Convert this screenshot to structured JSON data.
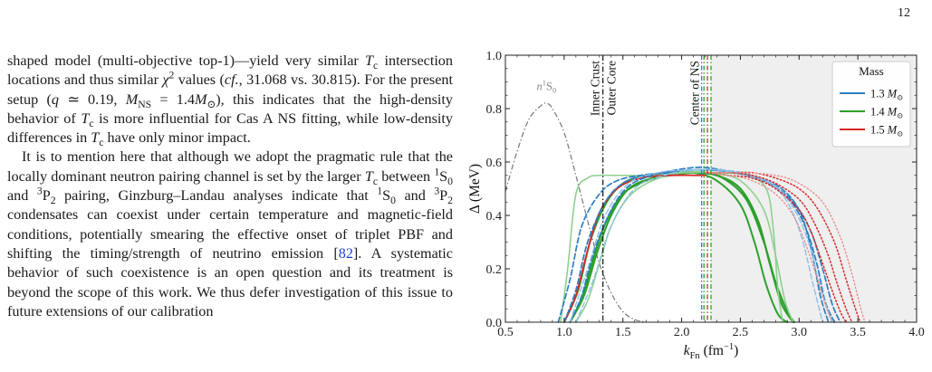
{
  "page": {
    "number": "12"
  },
  "body_text": {
    "para1": [
      {
        "t": "shaped model (multi-objective top-1)—yield very similar "
      },
      {
        "t": "T",
        "i": true
      },
      {
        "t": "c",
        "sub": true
      },
      {
        "t": " intersection locations and thus similar "
      },
      {
        "t": "χ",
        "i": true
      },
      {
        "t": "2",
        "sup": true
      },
      {
        "t": " values ("
      },
      {
        "t": "cf.",
        "i": true
      },
      {
        "t": ", 31.068 vs. 30.815). For the present setup ("
      },
      {
        "t": "q",
        "i": true
      },
      {
        "t": " ≃ 0.19, "
      },
      {
        "t": "M",
        "i": true
      },
      {
        "t": "NS",
        "sub": true
      },
      {
        "t": " = 1.4"
      },
      {
        "t": "M",
        "i": true
      },
      {
        "t": "⊙",
        "sub": true
      },
      {
        "t": "), this indicates that the high-density behavior of "
      },
      {
        "t": "T",
        "i": true
      },
      {
        "t": "c",
        "sub": true
      },
      {
        "t": " is more influential for Cas A NS fitting, while low-density differences in "
      },
      {
        "t": "T",
        "i": true
      },
      {
        "t": "c",
        "sub": true
      },
      {
        "t": " have only minor impact."
      }
    ],
    "para2": [
      {
        "t": "It is to mention here that although we adopt the pragmatic rule that the locally dominant neutron pairing channel is set by the larger "
      },
      {
        "t": "T",
        "i": true
      },
      {
        "t": "c",
        "sub": true
      },
      {
        "t": " between "
      },
      {
        "t": "1",
        "sup": true
      },
      {
        "t": "S"
      },
      {
        "t": "0",
        "sub": true
      },
      {
        "t": " and "
      },
      {
        "t": "3",
        "sup": true
      },
      {
        "t": "P"
      },
      {
        "t": "2",
        "sub": true
      },
      {
        "t": " pairing, Ginzburg–Landau analyses indicate that "
      },
      {
        "t": "1",
        "sup": true
      },
      {
        "t": "S"
      },
      {
        "t": "0",
        "sub": true
      },
      {
        "t": " and "
      },
      {
        "t": "3",
        "sup": true
      },
      {
        "t": "P"
      },
      {
        "t": "2",
        "sub": true
      },
      {
        "t": " condensates can coexist under certain temperature and magnetic-field conditions, potentially smearing the effective onset of triplet PBF and shifting the timing/strength of neutrino emission ["
      },
      {
        "t": "82",
        "cite": true
      },
      {
        "t": "]. A systematic behavior of such coexistence is an open question and its treatment is beyond the scope of this work. We thus defer investigation of this issue to future extensions of our calibration"
      }
    ]
  },
  "chart_data": {
    "type": "line",
    "xlabel": "k",
    "xlabel_sub": "Fn",
    "xlabel_unit": "(fm",
    "xlabel_unit_sup": "−1",
    "xlabel_unit_end": ")",
    "ylabel": "Δ (MeV)",
    "xlim": [
      0.5,
      4.0
    ],
    "ylim": [
      0.0,
      1.0
    ],
    "xticks": [
      "0.5",
      "1.0",
      "1.5",
      "2.0",
      "2.5",
      "3.0",
      "3.5",
      "4.0"
    ],
    "yticks": [
      "0.0",
      "0.2",
      "0.4",
      "0.6",
      "0.8",
      "1.0"
    ],
    "legend": {
      "title": "Mass",
      "position": "top-right",
      "entries": [
        {
          "label": "1.3",
          "unit": "M",
          "sub": "⊙",
          "color": "#2e7fc1"
        },
        {
          "label": "1.4",
          "unit": "M",
          "sub": "⊙",
          "color": "#2ca02c"
        },
        {
          "label": "1.5",
          "unit": "M",
          "sub": "⊙",
          "color": "#d62728"
        }
      ]
    },
    "annotations": {
      "singlet_label": "n",
      "singlet_label_sup": "1",
      "singlet_label_end": "S",
      "singlet_label_sub": "0",
      "inner_crust": "Inner Crust",
      "outer_core": "Outer Core",
      "center": "Center of NS"
    },
    "crust_core_boundary_x": 1.33,
    "center_lines": [
      {
        "x": 2.17,
        "color": "#2e7fc1"
      },
      {
        "x": 2.19,
        "color": "#2ca02c"
      },
      {
        "x": 2.22,
        "color": "#d62728"
      },
      {
        "x": 2.25,
        "color": "#2ca02c"
      }
    ],
    "shaded_region_x": [
      2.25,
      4.0
    ],
    "singlet_curve": {
      "color": "#777777",
      "x": [
        0.5,
        0.6,
        0.7,
        0.8,
        0.85,
        0.9,
        1.0,
        1.1,
        1.2,
        1.3,
        1.4,
        1.5,
        1.6,
        1.7
      ],
      "y": [
        0.49,
        0.64,
        0.76,
        0.81,
        0.82,
        0.8,
        0.71,
        0.55,
        0.38,
        0.22,
        0.11,
        0.04,
        0.01,
        0.0
      ]
    },
    "series": [
      {
        "color": "#2ca02c",
        "style": "solid",
        "width": 2.2,
        "x": [
          1.05,
          1.15,
          1.25,
          1.35,
          1.5,
          1.7,
          1.9,
          2.1,
          2.3,
          2.5,
          2.65,
          2.75,
          2.85,
          2.95
        ],
        "y": [
          0.0,
          0.09,
          0.24,
          0.37,
          0.48,
          0.53,
          0.55,
          0.56,
          0.55,
          0.5,
          0.38,
          0.22,
          0.07,
          0.0
        ]
      },
      {
        "color": "#2ca02c",
        "style": "solid",
        "width": 2.0,
        "x": [
          1.05,
          1.17,
          1.28,
          1.4,
          1.55,
          1.75,
          1.95,
          2.15,
          2.35,
          2.55,
          2.7,
          2.8,
          2.9,
          2.96
        ],
        "y": [
          0.0,
          0.1,
          0.26,
          0.4,
          0.5,
          0.54,
          0.56,
          0.56,
          0.54,
          0.46,
          0.3,
          0.15,
          0.04,
          0.0
        ]
      },
      {
        "color": "#2ca02c",
        "style": "solid",
        "width": 2.0,
        "x": [
          1.0,
          1.12,
          1.22,
          1.35,
          1.5,
          1.7,
          1.9,
          2.1,
          2.3,
          2.5,
          2.62,
          2.72,
          2.82,
          2.9
        ],
        "y": [
          0.0,
          0.12,
          0.3,
          0.44,
          0.52,
          0.55,
          0.56,
          0.56,
          0.53,
          0.44,
          0.3,
          0.14,
          0.03,
          0.0
        ]
      },
      {
        "color": "#8fd08f",
        "style": "solid",
        "width": 1.6,
        "x": [
          0.97,
          1.03,
          1.1,
          1.2,
          1.3,
          1.45,
          1.7,
          2.0,
          2.3,
          2.55,
          2.72,
          2.78,
          2.82,
          2.86
        ],
        "y": [
          0.0,
          0.2,
          0.48,
          0.54,
          0.55,
          0.55,
          0.55,
          0.56,
          0.56,
          0.55,
          0.5,
          0.35,
          0.12,
          0.0
        ]
      },
      {
        "color": "#8fd08f",
        "style": "solid",
        "width": 1.6,
        "x": [
          1.1,
          1.2,
          1.3,
          1.4,
          1.55,
          1.75,
          2.0,
          2.25,
          2.5,
          2.7,
          2.8,
          2.88,
          2.95
        ],
        "y": [
          0.0,
          0.08,
          0.22,
          0.36,
          0.47,
          0.53,
          0.56,
          0.56,
          0.53,
          0.42,
          0.25,
          0.08,
          0.0
        ]
      },
      {
        "color": "#d62728",
        "style": "solid",
        "width": 1.8,
        "x": [
          1.0,
          1.1,
          1.2,
          1.3,
          1.45,
          1.65,
          1.9,
          2.15,
          2.2
        ],
        "y": [
          0.0,
          0.1,
          0.27,
          0.41,
          0.5,
          0.54,
          0.55,
          0.55,
          0.55
        ]
      },
      {
        "color": "#2e7fc1",
        "style": "dashed",
        "width": 1.7,
        "x": [
          0.95,
          1.05,
          1.15,
          1.3,
          1.45,
          1.65,
          1.85,
          2.05,
          2.25,
          2.45,
          2.65,
          2.85,
          3.0,
          3.1,
          3.18,
          3.25
        ],
        "y": [
          0.0,
          0.16,
          0.36,
          0.48,
          0.53,
          0.55,
          0.56,
          0.57,
          0.57,
          0.56,
          0.54,
          0.5,
          0.42,
          0.28,
          0.1,
          0.0
        ]
      },
      {
        "color": "#2e7fc1",
        "style": "dashed",
        "width": 1.7,
        "x": [
          1.0,
          1.1,
          1.2,
          1.35,
          1.5,
          1.7,
          1.9,
          2.1,
          2.3,
          2.5,
          2.7,
          2.9,
          3.05,
          3.15,
          3.22,
          3.3
        ],
        "y": [
          0.0,
          0.12,
          0.3,
          0.45,
          0.52,
          0.55,
          0.56,
          0.57,
          0.57,
          0.56,
          0.53,
          0.47,
          0.36,
          0.22,
          0.08,
          0.0
        ]
      },
      {
        "color": "#2e7fc1",
        "style": "dashed",
        "width": 1.7,
        "x": [
          1.05,
          1.15,
          1.25,
          1.4,
          1.55,
          1.75,
          1.95,
          2.15,
          2.35,
          2.55,
          2.75,
          2.95,
          3.1,
          3.2,
          3.28,
          3.35
        ],
        "y": [
          0.0,
          0.1,
          0.26,
          0.42,
          0.51,
          0.55,
          0.57,
          0.58,
          0.57,
          0.55,
          0.52,
          0.45,
          0.34,
          0.2,
          0.07,
          0.0
        ]
      },
      {
        "color": "#8ec0e6",
        "style": "dashed",
        "width": 1.4,
        "x": [
          1.05,
          1.2,
          1.35,
          1.55,
          1.8,
          2.05,
          2.3,
          2.55,
          2.75,
          2.9,
          3.02,
          3.12,
          3.2
        ],
        "y": [
          0.0,
          0.2,
          0.4,
          0.52,
          0.56,
          0.57,
          0.57,
          0.55,
          0.52,
          0.45,
          0.32,
          0.14,
          0.0
        ]
      },
      {
        "color": "#8ec0e6",
        "style": "dashed",
        "width": 1.4,
        "x": [
          1.1,
          1.25,
          1.4,
          1.6,
          1.85,
          2.1,
          2.35,
          2.6,
          2.8,
          2.95,
          3.08,
          3.18,
          3.28
        ],
        "y": [
          0.0,
          0.16,
          0.36,
          0.5,
          0.55,
          0.57,
          0.57,
          0.55,
          0.51,
          0.43,
          0.3,
          0.13,
          0.0
        ]
      },
      {
        "color": "#d62728",
        "style": "dotted",
        "width": 1.5,
        "x": [
          2.2,
          2.4,
          2.6,
          2.8,
          3.0,
          3.1,
          3.2,
          3.28,
          3.35,
          3.4
        ],
        "y": [
          0.56,
          0.55,
          0.54,
          0.5,
          0.42,
          0.34,
          0.22,
          0.12,
          0.04,
          0.0
        ]
      },
      {
        "color": "#d62728",
        "style": "dotted",
        "width": 1.5,
        "x": [
          2.2,
          2.4,
          2.6,
          2.8,
          3.0,
          3.12,
          3.24,
          3.32,
          3.4,
          3.45
        ],
        "y": [
          0.56,
          0.56,
          0.55,
          0.52,
          0.46,
          0.38,
          0.26,
          0.15,
          0.05,
          0.0
        ]
      },
      {
        "color": "#d62728",
        "style": "dotted",
        "width": 1.5,
        "x": [
          2.2,
          2.4,
          2.6,
          2.8,
          3.0,
          3.15,
          3.3,
          3.4,
          3.48,
          3.52
        ],
        "y": [
          0.56,
          0.56,
          0.56,
          0.54,
          0.5,
          0.43,
          0.3,
          0.16,
          0.05,
          0.0
        ]
      },
      {
        "color": "#e88a8a",
        "style": "dotted",
        "width": 1.3,
        "x": [
          2.2,
          2.5,
          2.8,
          3.0,
          3.2,
          3.35,
          3.45,
          3.52,
          3.56
        ],
        "y": [
          0.56,
          0.56,
          0.55,
          0.52,
          0.45,
          0.32,
          0.18,
          0.06,
          0.0
        ]
      },
      {
        "color": "#e88a8a",
        "style": "dotted",
        "width": 1.3,
        "x": [
          2.2,
          2.4,
          2.6,
          2.8,
          2.95,
          3.05,
          3.15,
          3.22,
          3.28
        ],
        "y": [
          0.56,
          0.55,
          0.53,
          0.48,
          0.4,
          0.3,
          0.17,
          0.07,
          0.0
        ]
      }
    ]
  }
}
